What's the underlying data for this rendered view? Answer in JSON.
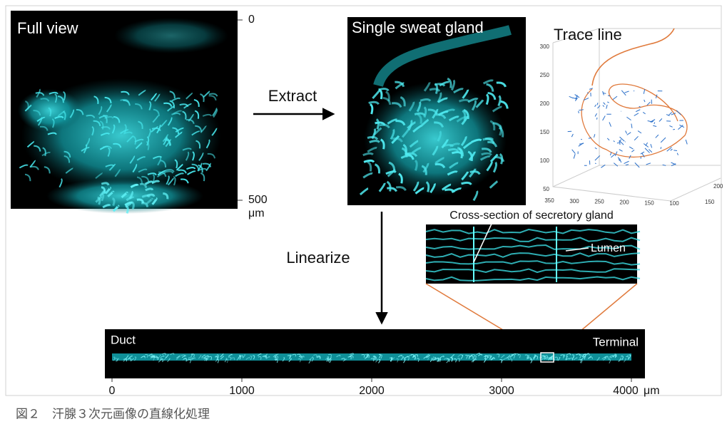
{
  "full_view": {
    "label": "Full view",
    "scale": {
      "ticks": [
        0,
        500
      ],
      "unit": "μm"
    }
  },
  "extract_label": "Extract",
  "single_gland": {
    "label": "Single sweat gland"
  },
  "trace_line": {
    "title": "Trace line",
    "z_ticks": [
      300,
      250,
      200,
      150,
      100,
      50
    ],
    "x_ticks": [
      350,
      300,
      250,
      200,
      150,
      100
    ],
    "y_ticks": [
      150,
      200
    ]
  },
  "linearize_label": "Linearize",
  "cross_section": {
    "title": "Cross-section of secretory gland",
    "lumen_label": "Lumen"
  },
  "linear_image": {
    "duct_label": "Duct",
    "terminal_label": "Terminal",
    "scale": {
      "ticks": [
        0,
        1000,
        2000,
        3000,
        4000
      ],
      "unit": "μm"
    }
  },
  "caption": "図２　汗腺３次元画像の直線化処理"
}
